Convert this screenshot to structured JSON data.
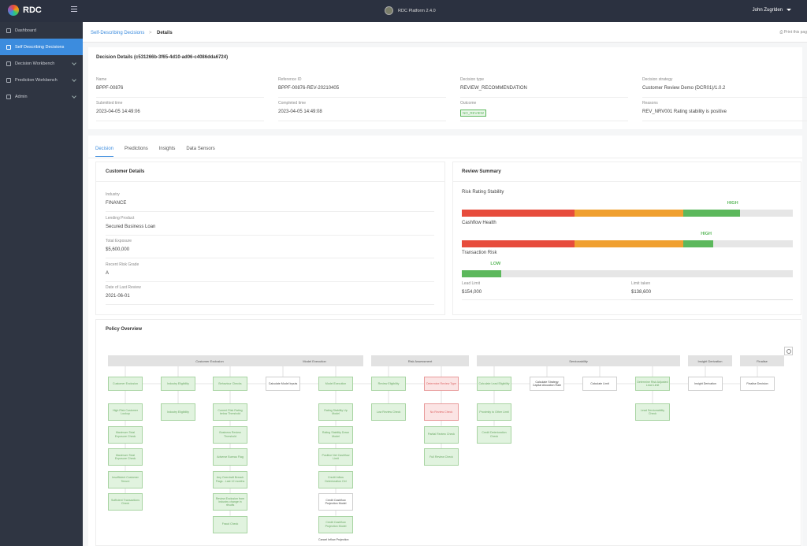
{
  "header": {
    "brand": "RDC",
    "platform": "RDC Platform 2.4.0",
    "user": "John Zugrlden"
  },
  "sidebar": {
    "items": [
      {
        "label": "Dashboard",
        "icon": "dashboard-icon",
        "active": false,
        "chevron": false
      },
      {
        "label": "Self Describing Decisions",
        "icon": "decisions-icon",
        "active": true,
        "chevron": false
      },
      {
        "label": "Decision Workbench",
        "icon": "workbench-icon",
        "active": false,
        "chevron": true
      },
      {
        "label": "Prediction Workbench",
        "icon": "prediction-icon",
        "active": false,
        "chevron": true
      },
      {
        "label": "Admin",
        "icon": "admin-icon",
        "active": false,
        "chevron": true
      }
    ]
  },
  "breadcrumb": {
    "parent": "Self-Describing Decisions",
    "separator": ">",
    "current": "Details",
    "print": "Print this pag"
  },
  "decision": {
    "title": "Decision Details (c531266b-3f65-4d10-ad06-c4086dda6724)",
    "fields": [
      {
        "label": "Name",
        "value": "BPPF-00876"
      },
      {
        "label": "Reference ID",
        "value": "BPPF-00876-REV-20210405"
      },
      {
        "label": "Decision type",
        "value": "REVIEW_RECOMMENDATION"
      },
      {
        "label": "Decision strategy",
        "value": "Customer Review Demo (DCR01)/1.0.2"
      },
      {
        "label": "Submitted time",
        "value": "2023-04-05 14:49:06"
      },
      {
        "label": "Completed time",
        "value": "2023-04-05 14:49:08"
      },
      {
        "label": "Outcome",
        "value": "NO_REVIEW"
      },
      {
        "label": "Reasons",
        "value": "REV_NRV001 Rating stability is positive"
      }
    ]
  },
  "tabs": [
    "Decision",
    "Predictions",
    "Insights",
    "Data Sensors"
  ],
  "customer": {
    "title": "Customer Details",
    "fields": [
      {
        "label": "Industry",
        "value": "FINANCE"
      },
      {
        "label": "Lending Product",
        "value": "Secured Business Loan"
      },
      {
        "label": "Total Exposure",
        "value": "$5,600,000"
      },
      {
        "label": "Recent Risk Grade",
        "value": "A"
      },
      {
        "label": "Date of Last Review",
        "value": "2021-06-01"
      }
    ]
  },
  "review": {
    "title": "Review Summary",
    "metrics": [
      {
        "label": "Risk Rating Stability",
        "level": "HIGH",
        "fill": 0.84
      },
      {
        "label": "Cashflow Health",
        "level": "HIGH",
        "fill": 0.76
      },
      {
        "label": "Transaction Risk",
        "level": "LOW",
        "fill": 0.12
      }
    ],
    "lead_limit_label": "Lead Limit",
    "lead_limit_value": "$154,000",
    "limit_taken_label": "Limit taken",
    "limit_taken_value": "$138,600"
  },
  "policy": {
    "title": "Policy Overview",
    "headers": [
      "Customer Exclusion",
      "Model Execution",
      "Risk Assessment",
      "Serviceability",
      "Insight Derivation",
      "Finalise"
    ],
    "nodes": [
      {
        "text": "Customer Exclusion",
        "style": "g"
      },
      {
        "text": "Industry Eligibility",
        "style": "g"
      },
      {
        "text": "Behaviour Checks",
        "style": "g"
      },
      {
        "text": "Calculate Model Inputs",
        "style": "w"
      },
      {
        "text": "Model Execution",
        "style": "g"
      },
      {
        "text": "Review Eligibility",
        "style": "g"
      },
      {
        "text": "Determine Review Type",
        "style": "r"
      },
      {
        "text": "Calculate Lead Eligibility",
        "style": "g"
      },
      {
        "text": "Calculate Strategy Capital Allocation Rate",
        "style": "w"
      },
      {
        "text": "Calculate Limit",
        "style": "w"
      },
      {
        "text": "Determine Risk Adjusted Lead Limit",
        "style": "g"
      },
      {
        "text": "Insight Derivation",
        "style": "w"
      },
      {
        "text": "Finalise Decision",
        "style": "w"
      }
    ],
    "subnodes": [
      {
        "col": 0,
        "items": [
          "High Risk Customer Lookup",
          "Maximum Total Exposure Check",
          "Maximum Total Exposure Check",
          "Insufficient Customer Tenure",
          "Sufficient Transactions Check"
        ]
      },
      {
        "col": 1,
        "items": [
          "Industry Eligibility"
        ]
      },
      {
        "col": 2,
        "items": [
          "Current Risk Rating below Threshold",
          "Business Review Threshold",
          "Adverse Bureau Flag",
          "Any Overdraft Breach Flags - Last 12 months",
          "Review Exclusion from Industry change in results",
          "Fraud Check"
        ]
      },
      {
        "col": 4,
        "items": [
          "Rating Stability Up Model",
          "Rating Stability Down Model",
          "Positive Net Cashflow Limit",
          "Credit Inflow Deterioration Ctrl",
          "Credit Cashflow Projection Model",
          "Credit Cashflow Projection Model"
        ]
      },
      {
        "col": 5,
        "items": [
          "Low Review Check"
        ]
      },
      {
        "col": 6,
        "items": [
          "No Review Check",
          "Partial Review Check",
          "Full Review Check"
        ]
      },
      {
        "col": 7,
        "items": [
          "Proximity to Other Limit",
          "Credit Deterioration Check"
        ]
      },
      {
        "col": 10,
        "items": [
          "Lead Serviceability Check"
        ]
      }
    ],
    "extra_text": "Cancel Inflow Projection"
  }
}
